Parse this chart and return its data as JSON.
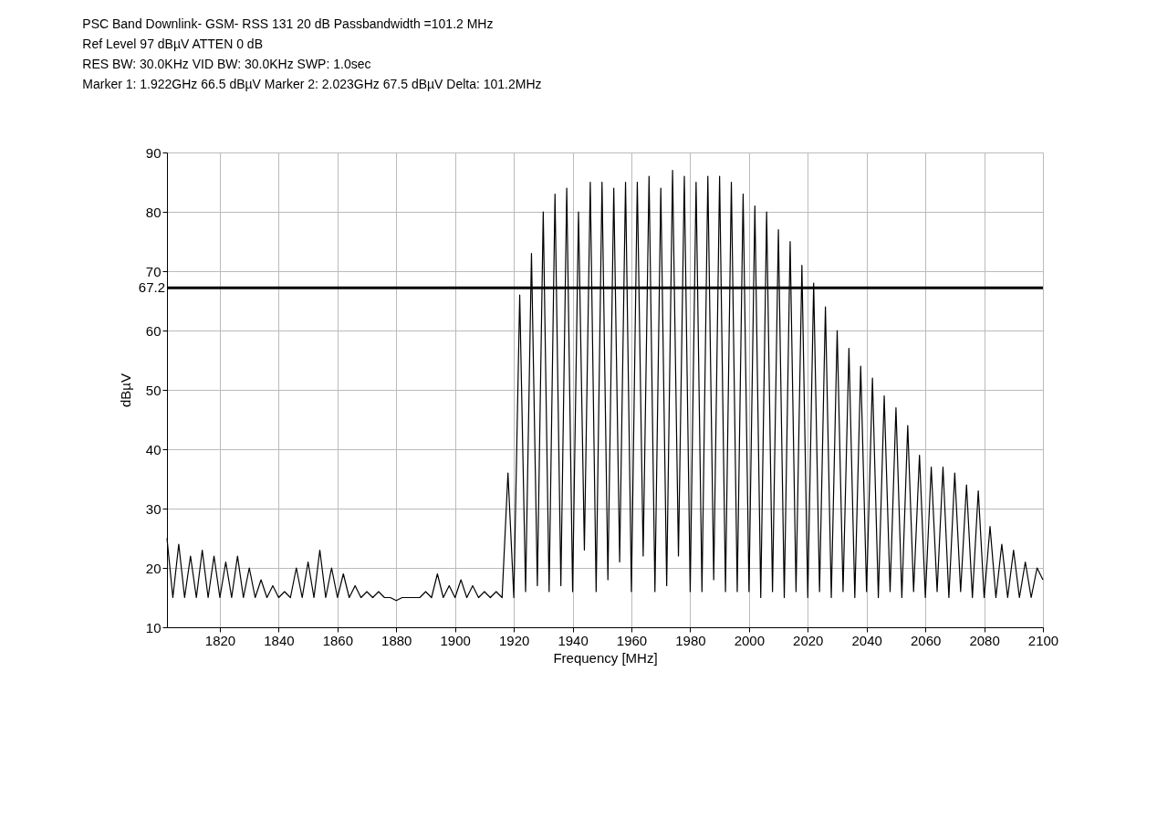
{
  "chart_data": {
    "type": "line",
    "title": "PSC Band Downlink- GSM- RSS 131 20 dB Passbandwidth =101.2 MHz",
    "annotations": [
      "Ref Level 97 dBµV    ATTEN 0 dB",
      "RES BW: 30.0KHz  VID BW: 30.0KHz  SWP: 1.0sec",
      "Marker 1: 1.922GHz  66.5 dBµV    Marker 2: 2.023GHz  67.5 dBµV Delta: 101.2MHz"
    ],
    "xlabel": "Frequency [MHz]",
    "ylabel": "dBµV",
    "xlim": [
      1802,
      2100
    ],
    "ylim": [
      10,
      90
    ],
    "xticks": [
      1820,
      1840,
      1860,
      1880,
      1900,
      1920,
      1940,
      1960,
      1980,
      2000,
      2020,
      2040,
      2060,
      2080,
      2100
    ],
    "yticks": [
      10,
      20,
      30,
      40,
      50,
      60,
      70,
      80,
      90
    ],
    "grid": true,
    "marker": "none",
    "line_style": "solid",
    "ref_lines": [
      {
        "axis": "y",
        "value": 67.2,
        "label": "67.2",
        "color": "#000000"
      }
    ],
    "series": [
      {
        "color": "#000000",
        "x": [
          1802,
          1804,
          1806,
          1808,
          1810,
          1812,
          1814,
          1816,
          1818,
          1820,
          1822,
          1824,
          1826,
          1828,
          1830,
          1832,
          1834,
          1836,
          1838,
          1840,
          1842,
          1844,
          1846,
          1848,
          1850,
          1852,
          1854,
          1856,
          1858,
          1860,
          1862,
          1864,
          1866,
          1868,
          1870,
          1872,
          1874,
          1876,
          1878,
          1880,
          1882,
          1884,
          1886,
          1888,
          1890,
          1892,
          1894,
          1896,
          1898,
          1900,
          1902,
          1904,
          1906,
          1908,
          1910,
          1912,
          1914,
          1916,
          1918,
          1920,
          1922,
          1924,
          1926,
          1928,
          1930,
          1932,
          1934,
          1936,
          1938,
          1940,
          1942,
          1944,
          1946,
          1948,
          1950,
          1952,
          1954,
          1956,
          1958,
          1960,
          1962,
          1964,
          1966,
          1968,
          1970,
          1972,
          1974,
          1976,
          1978,
          1980,
          1982,
          1984,
          1986,
          1988,
          1990,
          1992,
          1994,
          1996,
          1998,
          2000,
          2002,
          2004,
          2006,
          2008,
          2010,
          2012,
          2014,
          2016,
          2018,
          2020,
          2022,
          2024,
          2026,
          2028,
          2030,
          2032,
          2034,
          2036,
          2038,
          2040,
          2042,
          2044,
          2046,
          2048,
          2050,
          2052,
          2054,
          2056,
          2058,
          2060,
          2062,
          2064,
          2066,
          2068,
          2070,
          2072,
          2074,
          2076,
          2078,
          2080,
          2082,
          2084,
          2086,
          2088,
          2090,
          2092,
          2094,
          2096,
          2098,
          2100
        ],
        "values": [
          25,
          15,
          24,
          15,
          22,
          15,
          23,
          15,
          22,
          15,
          21,
          15,
          22,
          15,
          20,
          15,
          18,
          15,
          17,
          15,
          16,
          15,
          20,
          15,
          21,
          15,
          23,
          15,
          20,
          15,
          19,
          15,
          17,
          15,
          16,
          15,
          16,
          15,
          15,
          14.5,
          15,
          15,
          15,
          15,
          16,
          15,
          19,
          15,
          17,
          15,
          18,
          15,
          17,
          15,
          16,
          15,
          16,
          15,
          36,
          15,
          66,
          16,
          73,
          17,
          80,
          16,
          83,
          17,
          84,
          16,
          80,
          23,
          85,
          16,
          85,
          18,
          84,
          21,
          85,
          16,
          85,
          22,
          86,
          16,
          84,
          17,
          87,
          22,
          86,
          16,
          85,
          16,
          86,
          18,
          86,
          16,
          85,
          16,
          83,
          16,
          81,
          15,
          80,
          16,
          77,
          15,
          75,
          16,
          71,
          15,
          68,
          16,
          64,
          15,
          60,
          16,
          57,
          15,
          54,
          16,
          52,
          15,
          49,
          16,
          47,
          15,
          44,
          16,
          39,
          15,
          37,
          16,
          37,
          15,
          36,
          16,
          34,
          15,
          33,
          15,
          27,
          15,
          24,
          15,
          23,
          15,
          21,
          15,
          20,
          18
        ]
      }
    ]
  }
}
